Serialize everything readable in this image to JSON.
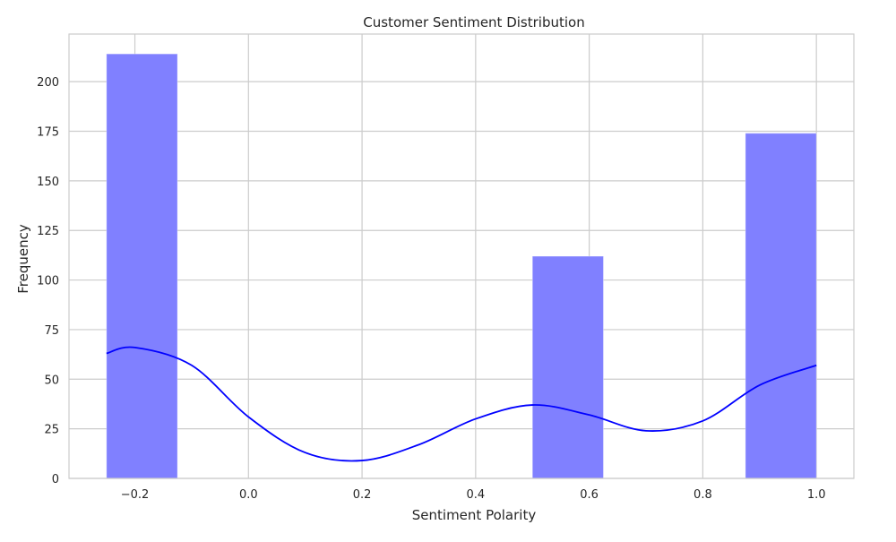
{
  "chart_data": {
    "type": "bar",
    "title": "Customer Sentiment Distribution",
    "xlabel": "Sentiment Polarity",
    "ylabel": "Frequency",
    "xlim": [
      -0.316,
      1.066
    ],
    "ylim": [
      0,
      224
    ],
    "xticks": [
      -0.2,
      0.0,
      0.2,
      0.4,
      0.6,
      0.8,
      1.0
    ],
    "xtick_labels": [
      "−0.2",
      "0.0",
      "0.2",
      "0.4",
      "0.6",
      "0.8",
      "1.0"
    ],
    "yticks": [
      0,
      25,
      50,
      75,
      100,
      125,
      150,
      175,
      200
    ],
    "ytick_labels": [
      "0",
      "25",
      "50",
      "75",
      "100",
      "125",
      "150",
      "175",
      "200"
    ],
    "grid": true,
    "histogram": {
      "bin_edges": [
        -0.25,
        -0.125,
        0.0,
        0.125,
        0.25,
        0.375,
        0.5,
        0.625,
        0.75,
        0.875,
        1.0
      ],
      "counts": [
        214,
        0,
        0,
        0,
        0,
        0,
        112,
        0,
        0,
        174
      ],
      "color": "#8080ff"
    },
    "kde": {
      "color": "#0000ff",
      "x": [
        -0.25,
        -0.2,
        -0.1,
        0.0,
        0.1,
        0.2,
        0.3,
        0.4,
        0.5,
        0.6,
        0.7,
        0.8,
        0.9,
        1.0
      ],
      "y": [
        63,
        66,
        57,
        31,
        13,
        9,
        17,
        30,
        37,
        32,
        24,
        29,
        47,
        57
      ]
    }
  }
}
